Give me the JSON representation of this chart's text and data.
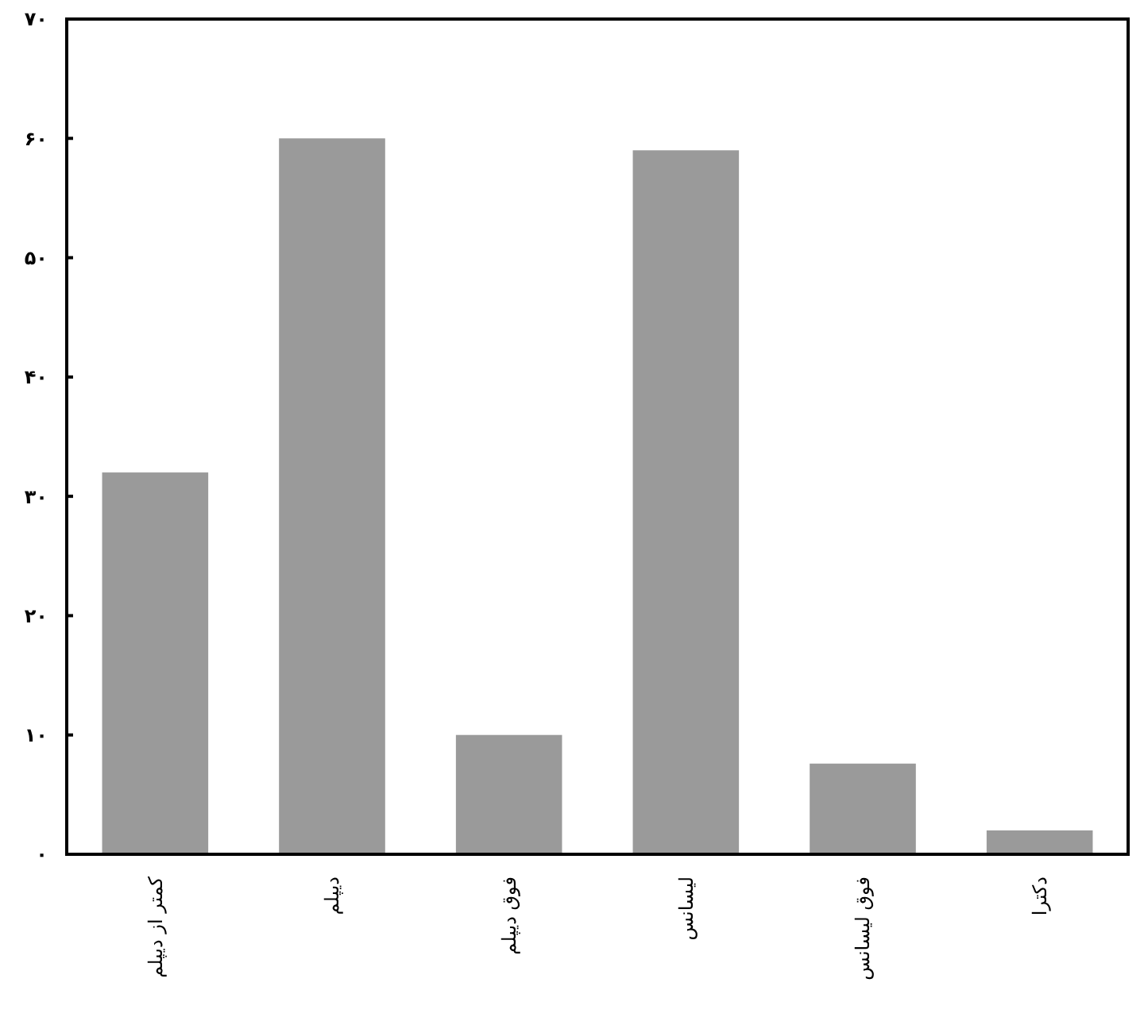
{
  "chart_data": {
    "type": "bar",
    "categories": [
      "کمتر از دیپلم",
      "دیپلم",
      "فوق دیپلم",
      "لیسانس",
      "فوق لیسانس",
      "دکترا"
    ],
    "values": [
      32,
      60,
      10,
      59,
      7.6,
      2
    ],
    "color": "#9a9a9a",
    "ylim": [
      0,
      70
    ],
    "yticks": [
      {
        "value": 0,
        "label": "۰"
      },
      {
        "value": 10,
        "label": "۱۰"
      },
      {
        "value": 20,
        "label": "۲۰"
      },
      {
        "value": 30,
        "label": "۳۰"
      },
      {
        "value": 40,
        "label": "۴۰"
      },
      {
        "value": 50,
        "label": "۵۰"
      },
      {
        "value": 60,
        "label": "۶۰"
      },
      {
        "value": 70,
        "label": "۷۰"
      }
    ]
  }
}
